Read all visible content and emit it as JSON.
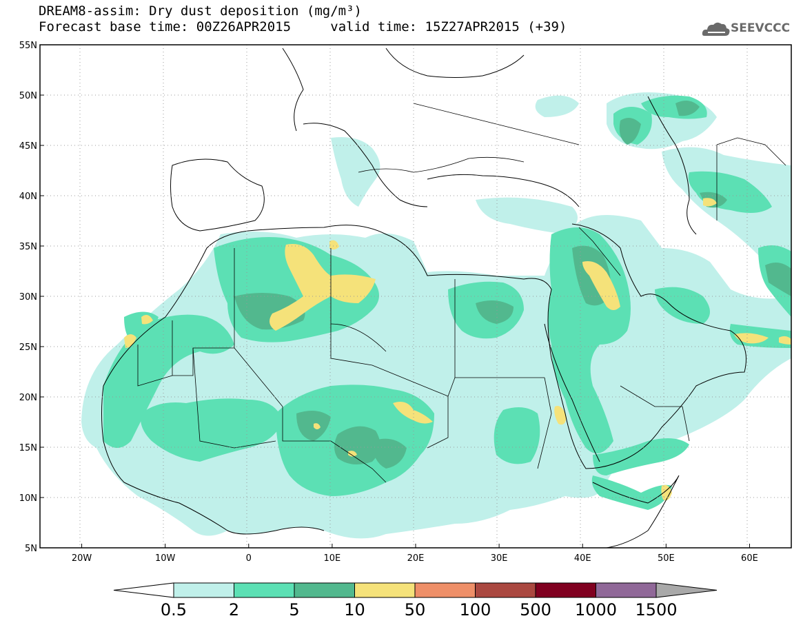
{
  "header": {
    "line1": "DREAM8-assim: Dry dust deposition (mg/m³)",
    "line2_base": "Forecast base time: 00Z26APR2015",
    "line2_valid": "valid time: 15Z27APR2015 (+39)",
    "logo_text": "SEEVCCC",
    "logo_icon": "cloud-icon"
  },
  "map": {
    "lon_range": [
      -25,
      65
    ],
    "lat_range": [
      5,
      55
    ],
    "y_ticks": [
      {
        "lat": 55,
        "label": "55N"
      },
      {
        "lat": 50,
        "label": "50N"
      },
      {
        "lat": 45,
        "label": "45N"
      },
      {
        "lat": 40,
        "label": "40N"
      },
      {
        "lat": 35,
        "label": "35N"
      },
      {
        "lat": 30,
        "label": "30N"
      },
      {
        "lat": 25,
        "label": "25N"
      },
      {
        "lat": 20,
        "label": "20N"
      },
      {
        "lat": 15,
        "label": "15N"
      },
      {
        "lat": 10,
        "label": "10N"
      },
      {
        "lat": 5,
        "label": "5N"
      }
    ],
    "x_ticks": [
      {
        "lon": -20,
        "label": "20W"
      },
      {
        "lon": -10,
        "label": "10W"
      },
      {
        "lon": 0,
        "label": "0"
      },
      {
        "lon": 10,
        "label": "10E"
      },
      {
        "lon": 20,
        "label": "20E"
      },
      {
        "lon": 30,
        "label": "30E"
      },
      {
        "lon": 40,
        "label": "40E"
      },
      {
        "lon": 50,
        "label": "50E"
      },
      {
        "lon": 60,
        "label": "60E"
      }
    ],
    "grid": "dotted"
  },
  "colorbar": {
    "labels": [
      "0.5",
      "2",
      "5",
      "10",
      "50",
      "100",
      "500",
      "1000",
      "1500"
    ],
    "colors": [
      "#ffffff",
      "#c0f0ea",
      "#5ce0b4",
      "#52b88e",
      "#f5e27a",
      "#ee8f68",
      "#aa4840",
      "#800020",
      "#906898",
      "#a9a9a9"
    ]
  }
}
